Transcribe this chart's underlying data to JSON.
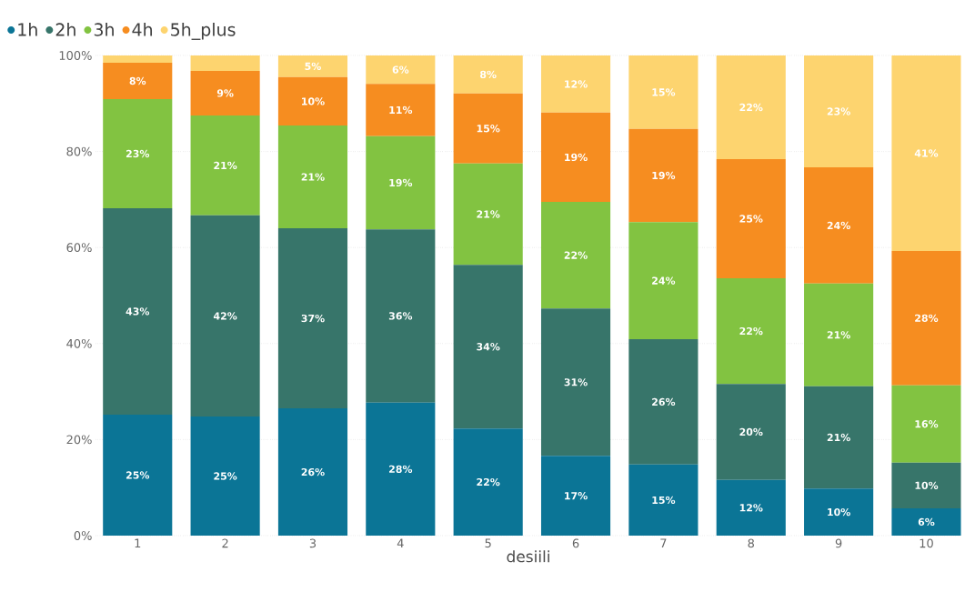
{
  "chart_data": {
    "type": "bar",
    "stacked": true,
    "xlabel": "desiili",
    "categories": [
      "1",
      "2",
      "3",
      "4",
      "5",
      "6",
      "7",
      "8",
      "9",
      "10"
    ],
    "series": [
      {
        "name": "1h",
        "color": "#0b7596",
        "values": [
          25.2,
          24.8,
          26.5,
          27.7,
          22.3,
          16.6,
          14.8,
          11.6,
          9.8,
          5.7
        ],
        "value_labels": [
          "25%",
          "25%",
          "26%",
          "28%",
          "22%",
          "17%",
          "15%",
          "12%",
          "10%",
          "6%"
        ]
      },
      {
        "name": "2h",
        "color": "#37756a",
        "values": [
          43.0,
          41.9,
          37.5,
          36.1,
          34.1,
          30.7,
          26.1,
          20.0,
          21.3,
          9.5
        ],
        "value_labels": [
          "43%",
          "42%",
          "37%",
          "36%",
          "34%",
          "31%",
          "26%",
          "20%",
          "21%",
          "10%"
        ]
      },
      {
        "name": "3h",
        "color": "#82c341",
        "values": [
          22.7,
          20.8,
          21.4,
          19.4,
          21.1,
          22.2,
          24.4,
          22.0,
          21.4,
          16.1
        ],
        "value_labels": [
          "23%",
          "21%",
          "21%",
          "19%",
          "21%",
          "22%",
          "24%",
          "22%",
          "21%",
          "16%"
        ]
      },
      {
        "name": "4h",
        "color": "#f68d20",
        "values": [
          7.6,
          9.3,
          10.1,
          10.9,
          14.6,
          18.6,
          19.4,
          24.8,
          24.2,
          28.0
        ],
        "value_labels": [
          "8%",
          "9%",
          "10%",
          "11%",
          "15%",
          "19%",
          "19%",
          "25%",
          "24%",
          "28%"
        ]
      },
      {
        "name": "5h_plus",
        "color": "#fdd46f",
        "values": [
          1.5,
          3.2,
          4.5,
          5.9,
          7.9,
          11.9,
          15.3,
          21.6,
          23.3,
          40.7
        ],
        "value_labels": [
          null,
          null,
          "5%",
          "6%",
          "8%",
          "12%",
          "15%",
          "22%",
          "23%",
          "41%"
        ]
      }
    ],
    "ylim": [
      0,
      100
    ],
    "yticks": [
      {
        "value": 0,
        "label": "0%"
      },
      {
        "value": 20,
        "label": "20%"
      },
      {
        "value": 40,
        "label": "40%"
      },
      {
        "value": 60,
        "label": "60%"
      },
      {
        "value": 80,
        "label": "80%"
      },
      {
        "value": 100,
        "label": "100%"
      }
    ],
    "grid": "y",
    "legend": "top left"
  }
}
